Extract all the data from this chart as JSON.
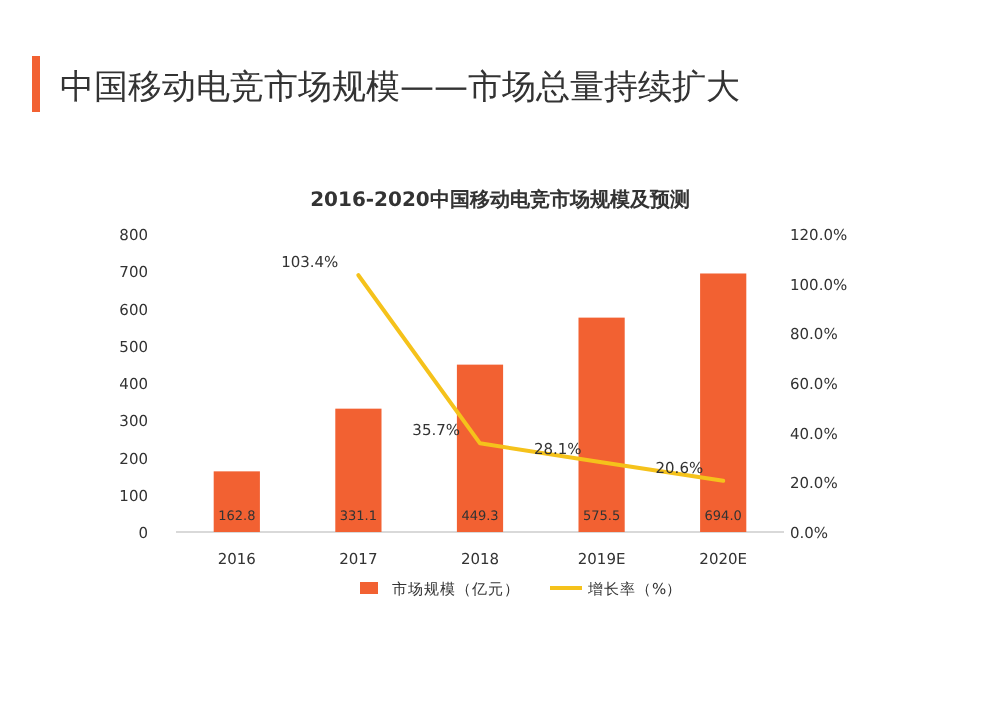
{
  "chart_data": {
    "type": "bar",
    "title": "中国移动电竞市场规模——市场总量持续扩大",
    "subtitle": "2016-2020中国移动电竞市场规模及预测",
    "categories": [
      "2016",
      "2017",
      "2018",
      "2019E",
      "2020E"
    ],
    "series": [
      {
        "name": "市场规模（亿元）",
        "color": "#f26132",
        "values": [
          162.8,
          331.1,
          449.3,
          575.5,
          694.0
        ],
        "value_labels": [
          "162.8",
          "331.1",
          "449.3",
          "575.5",
          "694.0"
        ]
      },
      {
        "name": "增长率（%）",
        "type": "line",
        "axis": "y2",
        "color": "#f5c21b",
        "values": [
          null,
          103.4,
          35.7,
          28.1,
          20.6
        ],
        "value_labels": [
          null,
          "103.4%",
          "35.7%",
          "28.1%",
          "20.6%"
        ]
      }
    ],
    "ylim": [
      0,
      800
    ],
    "yticks": [
      0,
      100,
      200,
      300,
      400,
      500,
      600,
      700,
      800
    ],
    "y2lim": [
      0,
      120
    ],
    "y2ticks": [
      {
        "value": 0,
        "label": "0.0%"
      },
      {
        "value": 20,
        "label": "20.0%"
      },
      {
        "value": 40,
        "label": "40.0%"
      },
      {
        "value": 60,
        "label": "60.0%"
      },
      {
        "value": 80,
        "label": "80.0%"
      },
      {
        "value": 100,
        "label": "100.0%"
      },
      {
        "value": 120,
        "label": "120.0%"
      }
    ],
    "legend": "bottom",
    "grid": false
  }
}
